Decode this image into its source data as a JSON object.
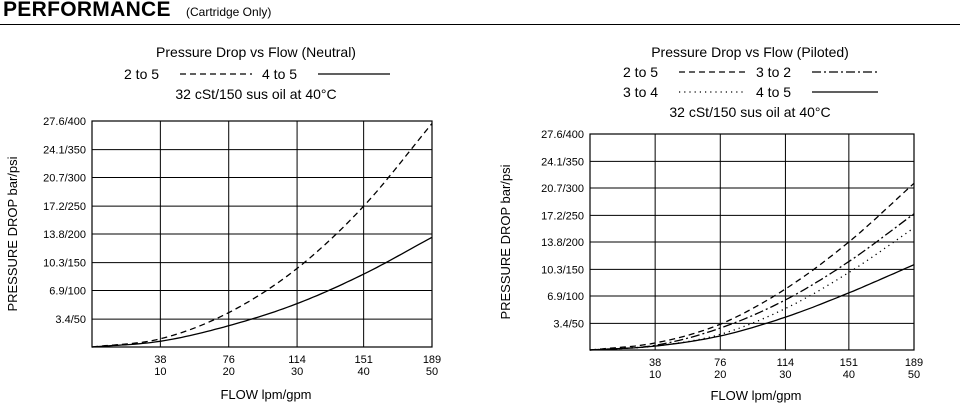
{
  "header": {
    "title": "PERFORMANCE",
    "subtitle": "(Cartridge Only)"
  },
  "chart_data": [
    {
      "type": "line",
      "title": "Pressure Drop vs Flow (Neutral)",
      "subtitle": "32 cSt/150 sus oil at 40°C",
      "xlabel": "FLOW lpm/gpm",
      "ylabel": "PRESSURE DROP bar/psi",
      "xlim": [
        0,
        189
      ],
      "ylim": [
        0,
        27.6
      ],
      "x_ticks": [
        {
          "value": 38,
          "lpm": "38",
          "gpm": "10"
        },
        {
          "value": 76,
          "lpm": "76",
          "gpm": "20"
        },
        {
          "value": 114,
          "lpm": "114",
          "gpm": "30"
        },
        {
          "value": 151,
          "lpm": "151",
          "gpm": "40"
        },
        {
          "value": 189,
          "lpm": "189",
          "gpm": "50"
        }
      ],
      "y_ticks": [
        {
          "value": 3.4,
          "label": "3.4/50"
        },
        {
          "value": 6.9,
          "label": "6.9/100"
        },
        {
          "value": 10.3,
          "label": "10.3/150"
        },
        {
          "value": 13.8,
          "label": "13.8/200"
        },
        {
          "value": 17.2,
          "label": "17.2/250"
        },
        {
          "value": 20.7,
          "label": "20.7/300"
        },
        {
          "value": 24.1,
          "label": "24.1/350"
        },
        {
          "value": 27.6,
          "label": "27.6/400"
        }
      ],
      "grid": true,
      "legend_position": "top",
      "legend_rows": [
        [
          "2 to 5",
          "4 to 5"
        ]
      ],
      "series": [
        {
          "name": "2 to 5",
          "style": "dashed",
          "x": [
            0,
            38,
            76,
            114,
            151,
            189
          ],
          "y": [
            0,
            1.0,
            4.2,
            9.6,
            17.2,
            27.3
          ]
        },
        {
          "name": "4 to 5",
          "style": "solid",
          "x": [
            0,
            38,
            76,
            114,
            151,
            189
          ],
          "y": [
            0,
            0.7,
            2.6,
            5.3,
            8.9,
            13.4
          ]
        }
      ]
    },
    {
      "type": "line",
      "title": "Pressure Drop vs Flow (Piloted)",
      "subtitle": "32 cSt/150 sus oil at 40°C",
      "xlabel": "FLOW lpm/gpm",
      "ylabel": "PRESSURE DROP bar/psi",
      "xlim": [
        0,
        189
      ],
      "ylim": [
        0,
        27.6
      ],
      "x_ticks": [
        {
          "value": 38,
          "lpm": "38",
          "gpm": "10"
        },
        {
          "value": 76,
          "lpm": "76",
          "gpm": "20"
        },
        {
          "value": 114,
          "lpm": "114",
          "gpm": "30"
        },
        {
          "value": 151,
          "lpm": "151",
          "gpm": "40"
        },
        {
          "value": 189,
          "lpm": "189",
          "gpm": "50"
        }
      ],
      "y_ticks": [
        {
          "value": 3.4,
          "label": "3.4/50"
        },
        {
          "value": 6.9,
          "label": "6.9/100"
        },
        {
          "value": 10.3,
          "label": "10.3/150"
        },
        {
          "value": 13.8,
          "label": "13.8/200"
        },
        {
          "value": 17.2,
          "label": "17.2/250"
        },
        {
          "value": 20.7,
          "label": "20.7/300"
        },
        {
          "value": 24.1,
          "label": "24.1/350"
        },
        {
          "value": 27.6,
          "label": "27.6/400"
        }
      ],
      "grid": true,
      "legend_position": "top",
      "legend_rows": [
        [
          "2 to 5",
          "3 to 2"
        ],
        [
          "3 to 4",
          "4 to 5"
        ]
      ],
      "series": [
        {
          "name": "2 to 5",
          "style": "dashed",
          "x": [
            0,
            38,
            76,
            114,
            151,
            189
          ],
          "y": [
            0,
            0.9,
            3.3,
            7.8,
            13.8,
            21.3
          ]
        },
        {
          "name": "3 to 2",
          "style": "dashdot",
          "x": [
            0,
            38,
            76,
            114,
            151,
            189
          ],
          "y": [
            0,
            0.6,
            2.8,
            6.4,
            11.3,
            17.4
          ]
        },
        {
          "name": "3 to 4",
          "style": "dotted",
          "x": [
            0,
            38,
            76,
            114,
            151,
            189
          ],
          "y": [
            0,
            0.5,
            2.0,
            5.3,
            9.9,
            15.6
          ]
        },
        {
          "name": "4 to 5",
          "style": "solid",
          "x": [
            0,
            38,
            76,
            114,
            151,
            189
          ],
          "y": [
            0,
            0.5,
            1.8,
            4.2,
            7.3,
            10.9
          ]
        }
      ]
    }
  ]
}
